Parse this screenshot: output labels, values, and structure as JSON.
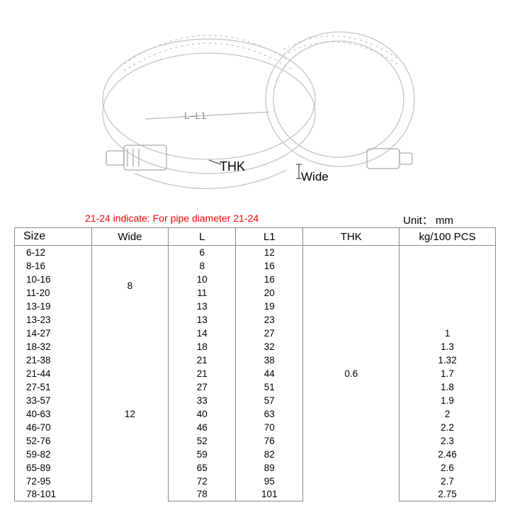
{
  "illustration": {
    "label_thk": "THK",
    "label_wide": "Wide",
    "label_ll1": "L–L1",
    "sketch_color": "#c8c8c8",
    "sketch_dark": "#999999"
  },
  "note_text": "21-24 indicate: For pipe diameter 21-24",
  "unit_text": "Unit： mm",
  "table": {
    "columns": [
      "Size",
      "Wide",
      "L",
      "L1",
      "THK",
      "kg/100 PCS"
    ],
    "column_widths_pct": [
      16,
      16,
      14,
      14,
      20,
      20
    ],
    "rows": [
      {
        "size": "6-12",
        "wide": "8",
        "l": "6",
        "l1": "12",
        "thk": "0.6",
        "kg": ""
      },
      {
        "size": "8-16",
        "wide": "8",
        "l": "8",
        "l1": "16",
        "thk": "0.6",
        "kg": ""
      },
      {
        "size": "10-16",
        "wide": "8",
        "l": "10",
        "l1": "16",
        "thk": "0.6",
        "kg": ""
      },
      {
        "size": "11-20",
        "wide": "8",
        "l": "11",
        "l1": "20",
        "thk": "0.6",
        "kg": ""
      },
      {
        "size": "13-19",
        "wide": "8",
        "l": "13",
        "l1": "19",
        "thk": "0.6",
        "kg": ""
      },
      {
        "size": "13-23",
        "wide": "8",
        "l": "13",
        "l1": "23",
        "thk": "0.6",
        "kg": ""
      },
      {
        "size": "14-27",
        "wide": "12",
        "l": "14",
        "l1": "27",
        "thk": "0.6",
        "kg": "1"
      },
      {
        "size": "18-32",
        "wide": "12",
        "l": "18",
        "l1": "32",
        "thk": "0.6",
        "kg": "1.3"
      },
      {
        "size": "21-38",
        "wide": "12",
        "l": "21",
        "l1": "38",
        "thk": "0.6",
        "kg": "1.32"
      },
      {
        "size": "21-44",
        "wide": "12",
        "l": "21",
        "l1": "44",
        "thk": "0.6",
        "kg": "1.7"
      },
      {
        "size": "27-51",
        "wide": "12",
        "l": "27",
        "l1": "51",
        "thk": "0.6",
        "kg": "1.8"
      },
      {
        "size": "33-57",
        "wide": "12",
        "l": "33",
        "l1": "57",
        "thk": "0.6",
        "kg": "1.9"
      },
      {
        "size": "40-63",
        "wide": "12",
        "l": "40",
        "l1": "63",
        "thk": "0.6",
        "kg": "2"
      },
      {
        "size": "46-70",
        "wide": "12",
        "l": "46",
        "l1": "70",
        "thk": "0.6",
        "kg": "2.2"
      },
      {
        "size": "52-76",
        "wide": "12",
        "l": "52",
        "l1": "76",
        "thk": "0.6",
        "kg": "2.3"
      },
      {
        "size": "59-82",
        "wide": "12",
        "l": "59",
        "l1": "82",
        "thk": "0.6",
        "kg": "2.46"
      },
      {
        "size": "65-89",
        "wide": "12",
        "l": "65",
        "l1": "89",
        "thk": "0.6",
        "kg": "2.6"
      },
      {
        "size": "72-95",
        "wide": "12",
        "l": "72",
        "l1": "95",
        "thk": "0.6",
        "kg": "2.7"
      },
      {
        "size": "78-101",
        "wide": "12",
        "l": "78",
        "l1": "101",
        "thk": "0.6",
        "kg": "2.75"
      }
    ],
    "wide_groups": [
      {
        "value": "8",
        "start": 0,
        "len": 6
      },
      {
        "value": "12",
        "start": 6,
        "len": 13
      }
    ],
    "thk_group": {
      "value": "0.6",
      "start": 0,
      "len": 19
    },
    "border_color": "#888888",
    "font_size_header": 15,
    "font_size_body": 13.5
  }
}
